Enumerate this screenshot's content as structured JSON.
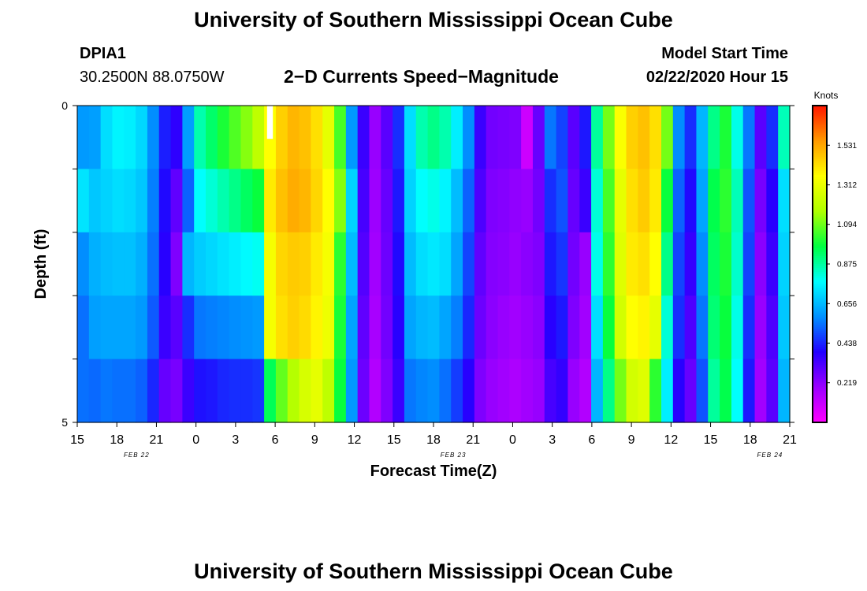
{
  "page": {
    "title": "University of Southern Mississippi Ocean Cube",
    "footer_title": "University of Southern Mississippi Ocean Cube",
    "station_id": "DPIA1",
    "station_coords": "30.2500N 88.0750W",
    "chart_title": "2−D Currents Speed−Magnitude",
    "model_start_label": "Model Start Time",
    "model_start_value": "02/22/2020 Hour 15"
  },
  "chart_data": {
    "type": "heatmap",
    "title": "2−D Currents Speed−Magnitude",
    "xlabel": "Forecast Time(Z)",
    "ylabel": "Depth (ft)",
    "x_tick_labels": [
      "15",
      "18",
      "21",
      "0",
      "3",
      "6",
      "9",
      "12",
      "15",
      "18",
      "21",
      "0",
      "3",
      "6",
      "9",
      "12",
      "15",
      "18",
      "21"
    ],
    "date_labels": [
      "FEB 22",
      "FEB 23",
      "FEB 24"
    ],
    "date_label_hours": [
      4.5,
      28.5,
      52.5
    ],
    "x_range_hours": [
      0,
      54
    ],
    "y_tick_labels": [
      "0",
      "5"
    ],
    "ylim": [
      0,
      5
    ],
    "colorbar": {
      "label": "Knots",
      "ticks": [
        "1.531",
        "1.312",
        "1.094",
        "0.875",
        "0.656",
        "0.438",
        "0.219"
      ],
      "range": [
        0,
        1.75
      ],
      "colors": [
        "#ff00ff",
        "#9b00ff",
        "#2200ff",
        "#0090ff",
        "#00ffff",
        "#00ff40",
        "#b0ff00",
        "#ffff00",
        "#ff9900",
        "#ff1500"
      ]
    },
    "grid": false,
    "depth_levels": 5,
    "column_speeds_knots": [
      [
        0.6,
        0.73,
        0.58,
        0.54,
        0.54
      ],
      [
        0.61,
        0.68,
        0.64,
        0.61,
        0.53
      ],
      [
        0.72,
        0.7,
        0.66,
        0.62,
        0.55
      ],
      [
        0.76,
        0.72,
        0.67,
        0.62,
        0.54
      ],
      [
        0.75,
        0.71,
        0.67,
        0.62,
        0.54
      ],
      [
        0.71,
        0.68,
        0.64,
        0.6,
        0.52
      ],
      [
        0.58,
        0.56,
        0.54,
        0.51,
        0.44
      ],
      [
        0.43,
        0.4,
        0.38,
        0.35,
        0.28
      ],
      [
        0.37,
        0.29,
        0.24,
        0.3,
        0.25
      ],
      [
        0.61,
        0.52,
        0.65,
        0.45,
        0.35
      ],
      [
        0.86,
        0.78,
        0.69,
        0.55,
        0.41
      ],
      [
        0.93,
        0.82,
        0.71,
        0.56,
        0.42
      ],
      [
        1.0,
        0.86,
        0.73,
        0.57,
        0.44
      ],
      [
        1.06,
        0.9,
        0.75,
        0.58,
        0.45
      ],
      [
        1.12,
        0.94,
        0.77,
        0.59,
        0.45
      ],
      [
        1.2,
        0.98,
        0.79,
        0.6,
        0.46
      ],
      [
        1.36,
        1.4,
        1.34,
        1.34,
        0.95
      ],
      [
        1.45,
        1.48,
        1.44,
        1.42,
        1.08
      ],
      [
        1.5,
        1.52,
        1.46,
        1.45,
        1.18
      ],
      [
        1.48,
        1.5,
        1.45,
        1.43,
        1.26
      ],
      [
        1.42,
        1.44,
        1.4,
        1.38,
        1.3
      ],
      [
        1.3,
        1.36,
        1.34,
        1.32,
        1.2
      ],
      [
        1.05,
        1.12,
        1.02,
        1.0,
        0.98
      ],
      [
        0.6,
        0.7,
        0.66,
        0.62,
        0.6
      ],
      [
        0.35,
        0.33,
        0.31,
        0.29,
        0.27
      ],
      [
        0.2,
        0.19,
        0.18,
        0.17,
        0.15
      ],
      [
        0.3,
        0.28,
        0.27,
        0.26,
        0.24
      ],
      [
        0.45,
        0.42,
        0.4,
        0.38,
        0.35
      ],
      [
        0.72,
        0.7,
        0.66,
        0.62,
        0.55
      ],
      [
        0.86,
        0.78,
        0.72,
        0.65,
        0.57
      ],
      [
        0.9,
        0.8,
        0.74,
        0.66,
        0.58
      ],
      [
        0.86,
        0.76,
        0.72,
        0.62,
        0.54
      ],
      [
        0.75,
        0.66,
        0.62,
        0.56,
        0.47
      ],
      [
        0.58,
        0.52,
        0.48,
        0.44,
        0.38
      ],
      [
        0.35,
        0.32,
        0.29,
        0.27,
        0.24
      ],
      [
        0.26,
        0.24,
        0.23,
        0.22,
        0.2
      ],
      [
        0.25,
        0.23,
        0.22,
        0.2,
        0.18
      ],
      [
        0.24,
        0.21,
        0.2,
        0.18,
        0.16
      ],
      [
        0.1,
        0.2,
        0.22,
        0.2,
        0.18
      ],
      [
        0.28,
        0.26,
        0.24,
        0.22,
        0.2
      ],
      [
        0.55,
        0.45,
        0.42,
        0.38,
        0.33
      ],
      [
        0.48,
        0.5,
        0.46,
        0.42,
        0.36
      ],
      [
        0.3,
        0.28,
        0.26,
        0.24,
        0.2
      ],
      [
        0.42,
        0.35,
        0.2,
        0.18,
        0.15
      ],
      [
        0.88,
        0.82,
        0.8,
        0.72,
        0.65
      ],
      [
        1.1,
        1.05,
        1.02,
        0.98,
        0.9
      ],
      [
        1.35,
        1.3,
        1.28,
        1.25,
        1.1
      ],
      [
        1.45,
        1.42,
        1.4,
        1.36,
        1.25
      ],
      [
        1.48,
        1.46,
        1.42,
        1.38,
        1.28
      ],
      [
        1.42,
        1.4,
        1.36,
        1.3,
        1.02
      ],
      [
        1.1,
        0.98,
        0.9,
        0.82,
        0.75
      ],
      [
        0.58,
        0.52,
        0.48,
        0.45,
        0.38
      ],
      [
        0.45,
        0.4,
        0.36,
        0.32,
        0.28
      ],
      [
        0.65,
        0.62,
        0.58,
        0.55,
        0.5
      ],
      [
        0.9,
        0.96,
        0.94,
        0.92,
        0.88
      ],
      [
        1.0,
        1.02,
        1.0,
        0.98,
        0.96
      ],
      [
        0.8,
        0.85,
        0.83,
        0.8,
        0.78
      ],
      [
        0.55,
        0.5,
        0.48,
        0.45,
        0.42
      ],
      [
        0.3,
        0.25,
        0.22,
        0.2,
        0.18
      ],
      [
        0.45,
        0.38,
        0.35,
        0.32,
        0.3
      ],
      [
        0.85,
        0.72,
        0.7,
        0.68,
        0.65
      ]
    ],
    "masked_cell": {
      "column": 16,
      "level": 0
    }
  }
}
